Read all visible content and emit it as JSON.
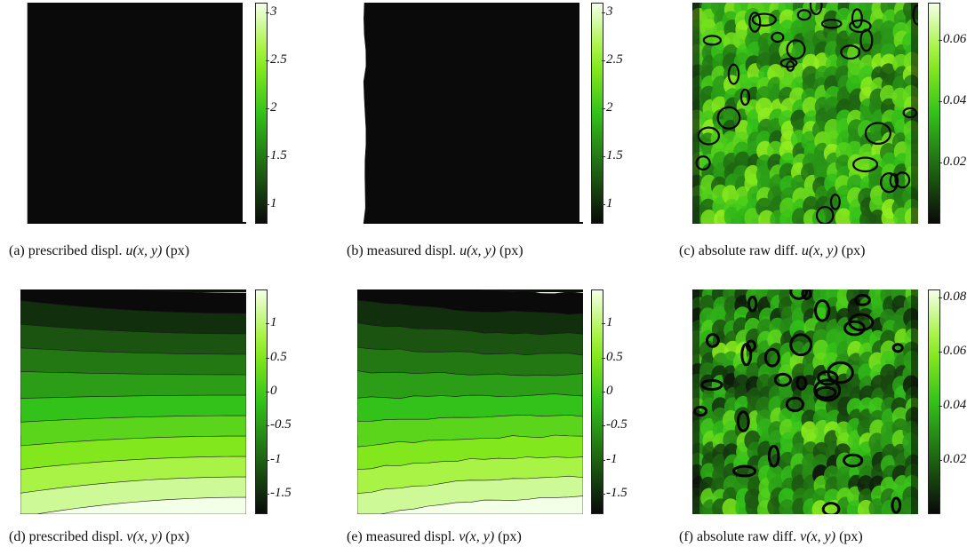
{
  "figure": {
    "panels": [
      {
        "id": "a",
        "caption_prefix": "(a) prescribed displ.",
        "caption_math": "u(x, y)",
        "caption_unit": "(px)",
        "colorbar_ticks": [
          "3",
          "2.5",
          "2",
          "1.5",
          "1"
        ],
        "colorbar_range": [
          0.8,
          3.1
        ],
        "type": "contour-u",
        "palette_top": "#f4ffe8",
        "palette_mid": "#33c21a",
        "palette_bottom": "#0a0a0a"
      },
      {
        "id": "b",
        "caption_prefix": "(b) measured displ.",
        "caption_math": "u(x, y)",
        "caption_unit": "(px)",
        "colorbar_ticks": [
          "3",
          "2.5",
          "2",
          "1.5",
          "1"
        ],
        "colorbar_range": [
          0.8,
          3.1
        ],
        "type": "contour-u-measured",
        "palette_top": "#f4ffe8",
        "palette_mid": "#33c21a",
        "palette_bottom": "#0a0a0a"
      },
      {
        "id": "c",
        "caption_prefix": "(c) absolute raw diff.",
        "caption_math": "u(x, y)",
        "caption_unit": "(px)",
        "colorbar_ticks": [
          "0.06",
          "0.04",
          "0.02"
        ],
        "colorbar_range": [
          0.0,
          0.072
        ],
        "type": "noise",
        "palette_top": "#f4ffe8",
        "palette_mid": "#33c21a",
        "palette_bottom": "#0a0a0a"
      },
      {
        "id": "d",
        "caption_prefix": "(d) prescribed displ.",
        "caption_math": "v(x, y)",
        "caption_unit": "(px)",
        "colorbar_ticks": [
          "1",
          "0.5",
          "0",
          "-0.5",
          "-1",
          "-1.5"
        ],
        "colorbar_range": [
          -1.8,
          1.5
        ],
        "type": "contour-v",
        "palette_top": "#f4ffe8",
        "palette_mid": "#33c21a",
        "palette_bottom": "#0a0a0a"
      },
      {
        "id": "e",
        "caption_prefix": "(e) measured displ.",
        "caption_math": "v(x, y)",
        "caption_unit": "(px)",
        "colorbar_ticks": [
          "1",
          "0.5",
          "0",
          "-0.5",
          "-1",
          "-1.5"
        ],
        "colorbar_range": [
          -1.8,
          1.5
        ],
        "type": "contour-v-measured",
        "palette_top": "#f4ffe8",
        "palette_mid": "#33c21a",
        "palette_bottom": "#0a0a0a"
      },
      {
        "id": "f",
        "caption_prefix": "(f) absolute raw diff.",
        "caption_math": "v(x, y)",
        "caption_unit": "(px)",
        "colorbar_ticks": [
          "0.08",
          "0.06",
          "0.04",
          "0.02"
        ],
        "colorbar_range": [
          0.0,
          0.083
        ],
        "type": "noise-dark",
        "palette_top": "#f4ffe8",
        "palette_mid": "#33c21a",
        "palette_bottom": "#0a0a0a"
      }
    ]
  }
}
